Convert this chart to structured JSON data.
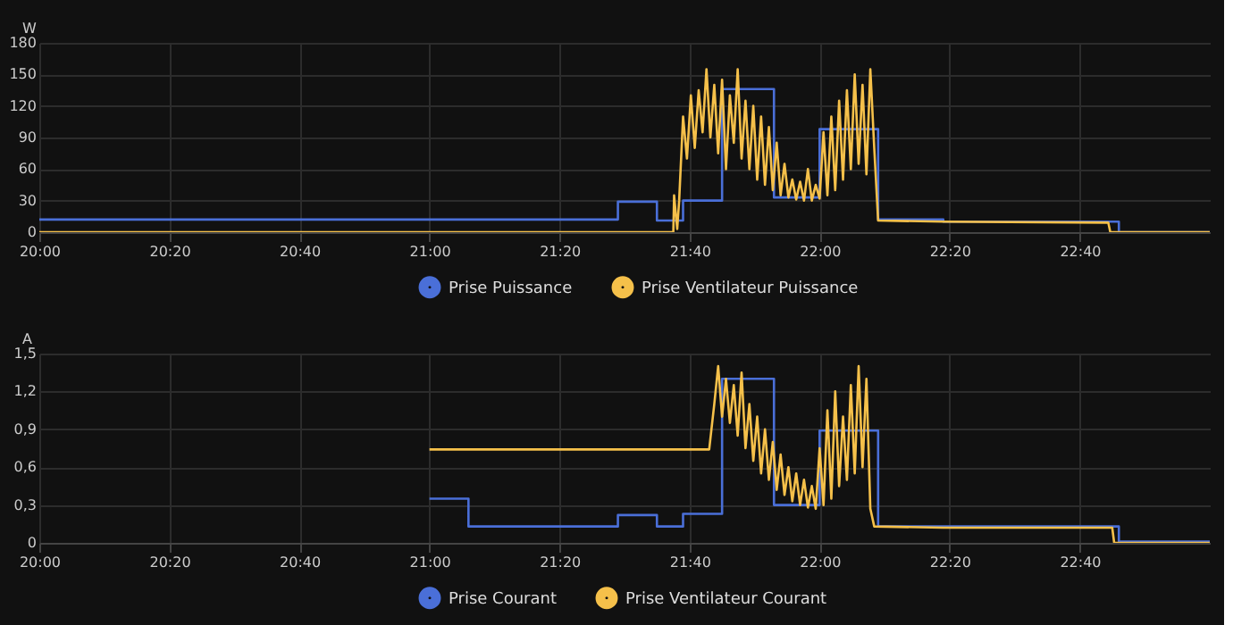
{
  "chart_data": [
    {
      "type": "step",
      "ylabel": "W",
      "xlim": [
        20.0,
        23.0
      ],
      "ylim": [
        0,
        180
      ],
      "yticks": [
        0,
        30,
        60,
        90,
        120,
        150,
        180
      ],
      "xticks": [
        {
          "value": 20.0,
          "label": "20:00"
        },
        {
          "value": 20.3333,
          "label": "20:20"
        },
        {
          "value": 20.6667,
          "label": "20:40"
        },
        {
          "value": 21.0,
          "label": "21:00"
        },
        {
          "value": 21.3333,
          "label": "21:20"
        },
        {
          "value": 21.6667,
          "label": "21:40"
        },
        {
          "value": 22.0,
          "label": "22:00"
        },
        {
          "value": 22.3333,
          "label": "22:20"
        },
        {
          "value": 22.6667,
          "label": "22:40"
        }
      ],
      "grid": true,
      "legend": "bottom",
      "marker": "none",
      "series": [
        {
          "name": "Prise Puissance",
          "color": "#4a6fd8",
          "x": [
            20.0,
            21.483,
            21.583,
            21.65,
            21.75,
            21.883,
            22.0,
            22.15,
            22.317,
            22.767,
            23.0
          ],
          "values": [
            12,
            29,
            11,
            30,
            136,
            33,
            98,
            12,
            10,
            0,
            0
          ]
        },
        {
          "name": "Prise Ventilateur Puissance",
          "type": "line",
          "color": "#f5c04a",
          "x": [
            20.0,
            21.625,
            21.627,
            21.635,
            21.64,
            21.65,
            21.66,
            21.67,
            21.68,
            21.69,
            21.7,
            21.71,
            21.72,
            21.73,
            21.74,
            21.75,
            21.76,
            21.77,
            21.78,
            21.79,
            21.8,
            21.81,
            21.82,
            21.83,
            21.84,
            21.85,
            21.86,
            21.87,
            21.88,
            21.89,
            21.9,
            21.91,
            21.92,
            21.93,
            21.94,
            21.95,
            21.96,
            21.97,
            21.98,
            21.99,
            22.0,
            22.01,
            22.02,
            22.03,
            22.04,
            22.05,
            22.06,
            22.07,
            22.08,
            22.09,
            22.1,
            22.11,
            22.12,
            22.13,
            22.14,
            22.15,
            22.32,
            22.74,
            22.745,
            23.0
          ],
          "values": [
            0,
            0,
            35,
            3,
            30,
            110,
            70,
            130,
            80,
            135,
            95,
            155,
            90,
            140,
            75,
            145,
            60,
            130,
            85,
            155,
            70,
            125,
            60,
            120,
            50,
            110,
            45,
            100,
            40,
            85,
            35,
            65,
            33,
            50,
            31,
            48,
            30,
            60,
            30,
            45,
            32,
            95,
            35,
            110,
            40,
            125,
            50,
            135,
            60,
            150,
            65,
            140,
            55,
            155,
            80,
            11,
            10,
            9,
            0,
            0
          ]
        }
      ]
    },
    {
      "type": "step",
      "ylabel": "A",
      "xlim": [
        20.0,
        23.0
      ],
      "ylim": [
        0,
        1.5
      ],
      "yticks": [
        0,
        {
          "value": 0.3,
          "label": "0,3"
        },
        {
          "value": 0.6,
          "label": "0,6"
        },
        {
          "value": 0.9,
          "label": "0,9"
        },
        {
          "value": 1.2,
          "label": "1,2"
        },
        {
          "value": 1.5,
          "label": "1,5"
        }
      ],
      "xticks": [
        {
          "value": 20.0,
          "label": "20:00"
        },
        {
          "value": 20.3333,
          "label": "20:20"
        },
        {
          "value": 20.6667,
          "label": "20:40"
        },
        {
          "value": 21.0,
          "label": "21:00"
        },
        {
          "value": 21.3333,
          "label": "21:20"
        },
        {
          "value": 21.6667,
          "label": "21:40"
        },
        {
          "value": 22.0,
          "label": "22:00"
        },
        {
          "value": 22.3333,
          "label": "22:20"
        },
        {
          "value": 22.6667,
          "label": "22:40"
        }
      ],
      "grid": true,
      "legend": "bottom",
      "marker": "none",
      "series": [
        {
          "name": "Prise Courant",
          "color": "#4a6fd8",
          "x": [
            21.0,
            21.1,
            21.483,
            21.583,
            21.65,
            21.75,
            21.883,
            22.0,
            22.15,
            22.767,
            23.0
          ],
          "values": [
            0.35,
            0.13,
            0.22,
            0.13,
            0.23,
            1.3,
            0.3,
            0.89,
            0.13,
            0.01,
            0.01
          ]
        },
        {
          "name": "Prise Ventilateur Courant",
          "type": "line",
          "color": "#f5c04a",
          "x": [
            21.0,
            21.717,
            21.73,
            21.74,
            21.75,
            21.76,
            21.77,
            21.78,
            21.79,
            21.8,
            21.81,
            21.82,
            21.83,
            21.84,
            21.85,
            21.86,
            21.87,
            21.88,
            21.89,
            21.9,
            21.91,
            21.92,
            21.93,
            21.94,
            21.95,
            21.96,
            21.97,
            21.98,
            21.99,
            22.0,
            22.01,
            22.02,
            22.03,
            22.04,
            22.05,
            22.06,
            22.07,
            22.08,
            22.09,
            22.1,
            22.11,
            22.12,
            22.13,
            22.14,
            22.317,
            22.75,
            22.755,
            23.0
          ],
          "values": [
            0.74,
            0.74,
            1.1,
            1.4,
            1.0,
            1.3,
            0.95,
            1.25,
            0.85,
            1.35,
            0.75,
            1.1,
            0.65,
            1.0,
            0.55,
            0.9,
            0.5,
            0.8,
            0.42,
            0.7,
            0.38,
            0.6,
            0.33,
            0.55,
            0.3,
            0.5,
            0.28,
            0.45,
            0.27,
            0.75,
            0.3,
            1.05,
            0.35,
            1.2,
            0.45,
            1.0,
            0.5,
            1.25,
            0.55,
            1.4,
            0.6,
            1.3,
            0.27,
            0.13,
            0.12,
            0.12,
            0,
            0
          ]
        }
      ]
    }
  ]
}
